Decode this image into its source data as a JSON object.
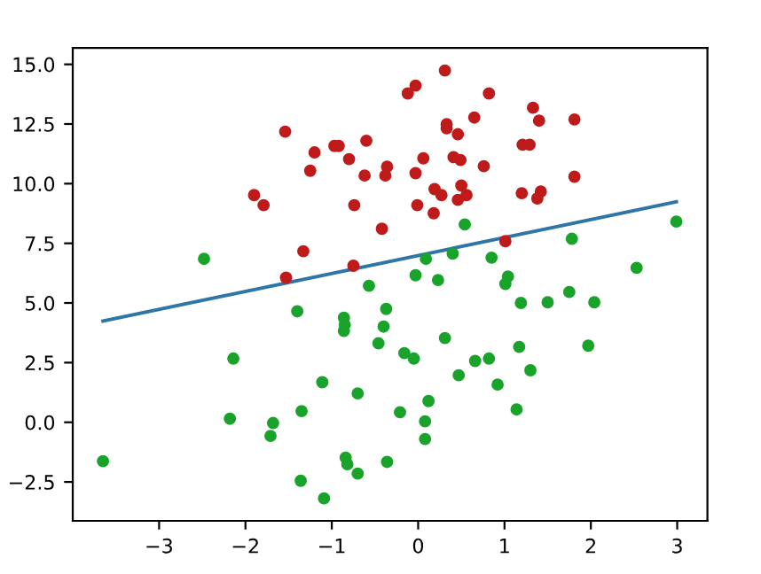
{
  "chart_data": {
    "type": "scatter",
    "xlim": [
      -4.0,
      3.35
    ],
    "ylim": [
      -4.13,
      15.69
    ],
    "xticks": [
      {
        "value": -3,
        "label": "−3"
      },
      {
        "value": -2,
        "label": "−2"
      },
      {
        "value": -1,
        "label": "−1"
      },
      0,
      1,
      2,
      3
    ],
    "yticks": [
      {
        "value": -2.5,
        "label": "−2.5"
      },
      {
        "value": 0,
        "label": "0.0"
      },
      {
        "value": 2.5,
        "label": "2.5"
      },
      {
        "value": 5,
        "label": "5.0"
      },
      {
        "value": 7.5,
        "label": "7.5"
      },
      {
        "value": 10,
        "label": "10.0"
      },
      {
        "value": 12.5,
        "label": "12.5"
      },
      {
        "value": 15,
        "label": "15.0"
      }
    ],
    "grid": false,
    "legend": false,
    "series": [
      {
        "marker": "circle",
        "color": "#bf1b1b",
        "x": [
          -1.54,
          -1.9,
          -1.79,
          -1.2,
          -1.25,
          -0.97,
          -0.92,
          -0.8,
          -0.6,
          -0.62,
          -0.74,
          -0.42,
          -1.33,
          -1.53,
          -0.75,
          -0.36,
          -0.38,
          0.31,
          -0.12,
          -0.03,
          0.82,
          1.33,
          1.4,
          1.81,
          0.65,
          0.33,
          0.33,
          0.46,
          1.21,
          1.29,
          0.06,
          0.41,
          0.49,
          0.76,
          -0.03,
          1.81,
          -0.01,
          0.18,
          0.19,
          0.27,
          0.5,
          0.56,
          0.46,
          1.2,
          1.42,
          1.38,
          1.01
        ],
        "values": [
          12.18,
          9.52,
          9.1,
          11.31,
          10.54,
          11.58,
          11.58,
          11.03,
          11.8,
          10.34,
          9.1,
          8.11,
          7.17,
          6.06,
          6.56,
          10.71,
          10.34,
          14.74,
          13.78,
          14.11,
          13.78,
          13.18,
          12.64,
          12.69,
          12.77,
          12.49,
          12.32,
          12.07,
          11.63,
          11.63,
          11.06,
          11.11,
          10.99,
          10.73,
          10.44,
          10.29,
          9.1,
          8.76,
          9.77,
          9.52,
          9.92,
          9.52,
          9.32,
          9.6,
          9.67,
          9.38,
          7.59
        ]
      },
      {
        "marker": "circle",
        "color": "#1aa32a",
        "x": [
          -2.48,
          -0.57,
          0.54,
          1.78,
          2.99,
          0.09,
          0.4,
          0.85,
          -0.03,
          0.23,
          1.04,
          1.01,
          2.53,
          1.19,
          1.5,
          1.75,
          2.04,
          -0.37,
          -0.4,
          -0.46,
          0.31,
          -0.16,
          -0.05,
          1.17,
          1.97,
          0.66,
          0.82,
          0.47,
          1.3,
          0.92,
          -0.7,
          0.12,
          -0.21,
          1.14,
          0.08,
          0.08,
          -0.36,
          -0.7,
          -3.65,
          -2.14,
          -2.18,
          -1.68,
          -1.71,
          -1.4,
          -0.86,
          -0.85,
          -0.86,
          -1.11,
          -1.35,
          -1.36,
          -1.09,
          -0.84,
          -0.82
        ],
        "values": [
          6.85,
          5.72,
          8.29,
          7.69,
          8.41,
          6.85,
          7.07,
          6.9,
          6.16,
          5.96,
          6.11,
          5.8,
          6.47,
          5.0,
          5.03,
          5.46,
          5.03,
          4.75,
          4.01,
          3.31,
          3.53,
          2.9,
          2.67,
          3.16,
          3.21,
          2.57,
          2.67,
          1.97,
          2.18,
          1.58,
          1.21,
          0.89,
          0.42,
          0.54,
          0.04,
          -0.7,
          -1.66,
          -2.15,
          -1.63,
          2.67,
          0.15,
          -0.03,
          -0.57,
          4.65,
          4.38,
          4.08,
          3.83,
          1.68,
          0.47,
          -2.45,
          -3.19,
          -1.48,
          -1.76
        ]
      },
      {
        "type": "line",
        "color": "#2e75a8",
        "x": [
          -3.65,
          2.99
        ],
        "values": [
          4.24,
          9.24
        ]
      }
    ]
  }
}
